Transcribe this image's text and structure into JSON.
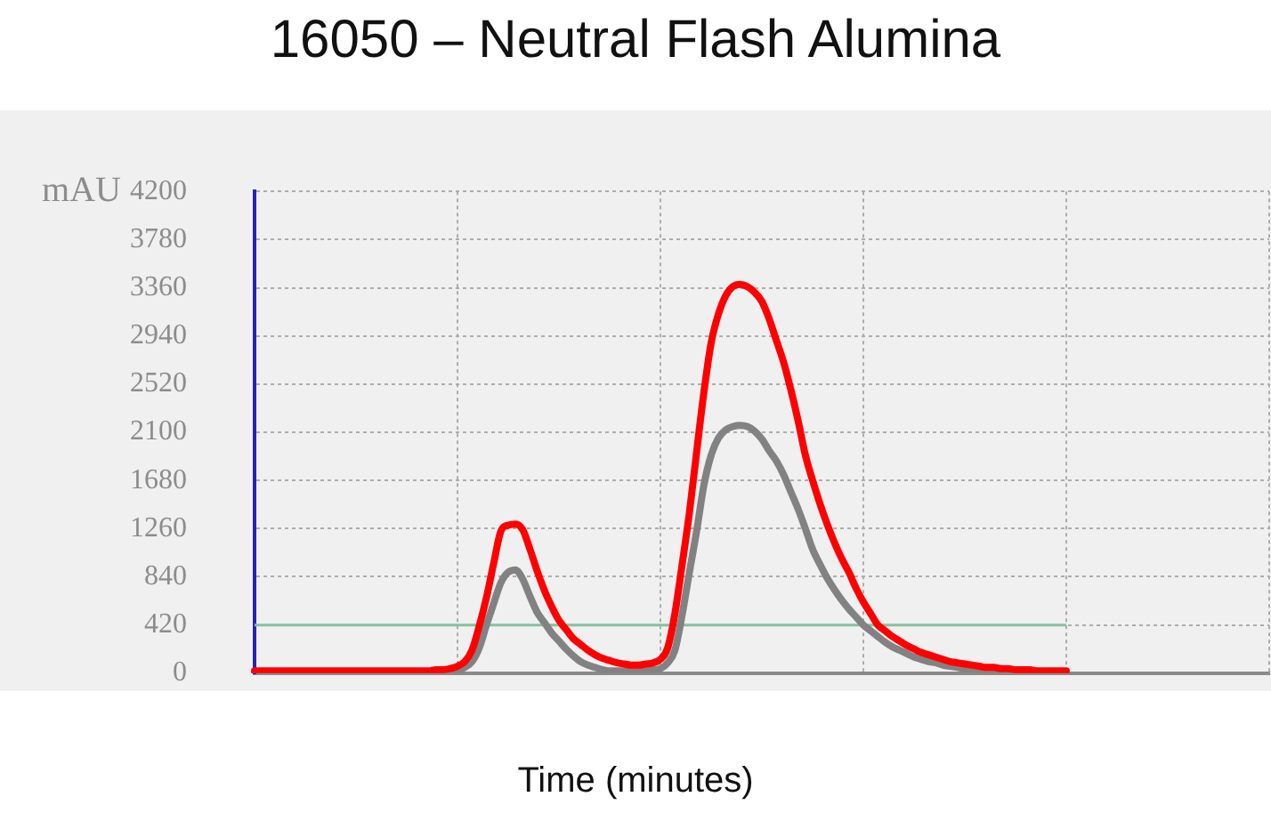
{
  "chart_data": {
    "type": "line",
    "title": "16050 – Neutral Flash Alumina",
    "xlabel": "Time (minutes)",
    "ylabel": "mAU",
    "categories": [
      null,
      null,
      null,
      null,
      null,
      null,
      null,
      null,
      null,
      null,
      null,
      null,
      null,
      null,
      null,
      null,
      null,
      null,
      null,
      null,
      null,
      null,
      null,
      null,
      null,
      null,
      null,
      null,
      null,
      null,
      null,
      null,
      null,
      null,
      null,
      null,
      null,
      null,
      null,
      null,
      null,
      null,
      null,
      null,
      null,
      null,
      null,
      null,
      null,
      null,
      null,
      null,
      null,
      null,
      null,
      null,
      null,
      null,
      null,
      null,
      null,
      null,
      null,
      null,
      null,
      null,
      null,
      null,
      null,
      null,
      null,
      null,
      null,
      null,
      null,
      null,
      null,
      null,
      null,
      null,
      null,
      null,
      null,
      null,
      null,
      null,
      null,
      null,
      null,
      null,
      null,
      null,
      null,
      null,
      null,
      null,
      null,
      null,
      null,
      null,
      null,
      null,
      null,
      null,
      null,
      null,
      null,
      null,
      null,
      null,
      null,
      null,
      null,
      null,
      null,
      null,
      null,
      null,
      null,
      null,
      null,
      null,
      null,
      null,
      null,
      null,
      null,
      null,
      null,
      null,
      null,
      null,
      null,
      null,
      null,
      null,
      null,
      null,
      null,
      null,
      null
    ],
    "series": [
      {
        "color": "#ff0000",
        "values": [
          20,
          20,
          20,
          20,
          20,
          20,
          20,
          20,
          20,
          20,
          20,
          20,
          20,
          20,
          20,
          20,
          20,
          20,
          20,
          20,
          20,
          20,
          20,
          20,
          20,
          30,
          30,
          40,
          60,
          100,
          200,
          410,
          660,
          960,
          1240,
          1290,
          1300,
          1250,
          1080,
          890,
          720,
          580,
          460,
          380,
          300,
          250,
          200,
          160,
          130,
          110,
          90,
          80,
          70,
          70,
          80,
          90,
          120,
          220,
          520,
          950,
          1400,
          1930,
          2450,
          2880,
          3130,
          3290,
          3370,
          3390,
          3370,
          3320,
          3240,
          3090,
          2900,
          2710,
          2470,
          2200,
          1900,
          1680,
          1480,
          1300,
          1140,
          1000,
          880,
          740,
          620,
          520,
          420,
          370,
          320,
          280,
          240,
          210,
          180,
          160,
          140,
          120,
          100,
          90,
          80,
          70,
          60,
          50,
          50,
          40,
          40,
          30,
          30,
          30,
          20,
          20,
          20,
          20,
          20,
          null,
          null,
          null,
          null,
          null,
          null,
          null,
          null,
          null,
          null,
          null,
          null,
          null,
          null,
          null,
          null,
          null,
          null,
          null,
          null,
          null,
          null,
          null,
          null,
          null,
          null,
          null,
          null
        ]
      },
      {
        "color": "#828282",
        "values": [
          0,
          0,
          0,
          0,
          0,
          0,
          0,
          0,
          0,
          0,
          0,
          0,
          0,
          0,
          0,
          0,
          0,
          0,
          0,
          0,
          0,
          0,
          0,
          0,
          0,
          0,
          0,
          0,
          20,
          50,
          100,
          220,
          420,
          610,
          790,
          880,
          900,
          820,
          670,
          530,
          440,
          350,
          280,
          210,
          150,
          100,
          70,
          50,
          30,
          20,
          20,
          20,
          20,
          20,
          20,
          30,
          40,
          90,
          200,
          510,
          880,
          1240,
          1640,
          1900,
          2050,
          2120,
          2150,
          2160,
          2150,
          2110,
          2040,
          1940,
          1850,
          1730,
          1580,
          1430,
          1260,
          1080,
          950,
          830,
          730,
          640,
          560,
          490,
          420,
          370,
          320,
          270,
          230,
          200,
          170,
          140,
          120,
          100,
          90,
          70,
          60,
          50,
          40,
          40,
          30,
          30,
          20,
          20,
          20,
          10,
          10,
          10,
          10,
          10,
          10,
          10,
          10,
          null,
          null,
          null,
          null,
          null,
          null,
          null,
          null,
          null,
          null,
          null,
          null,
          null,
          null,
          null,
          null,
          null,
          null,
          null,
          null,
          null,
          null,
          null,
          null,
          null,
          null,
          null,
          null
        ]
      }
    ],
    "ylim": [
      0,
      4200
    ],
    "yticks": [
      0,
      420,
      840,
      1260,
      1680,
      2100,
      2520,
      2940,
      3360,
      3780,
      4200
    ],
    "grid": true,
    "tick_labels": "y",
    "ref_lines": [
      {
        "axis": "y",
        "value": 420,
        "color": "#86c0a0"
      }
    ]
  }
}
